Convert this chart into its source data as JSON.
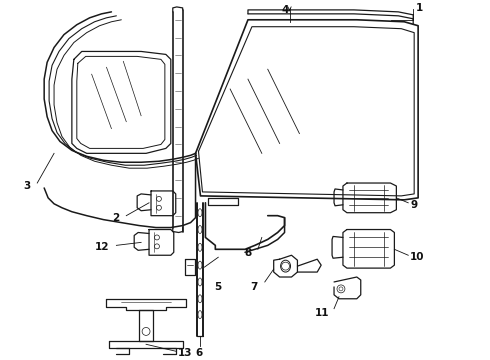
{
  "background_color": "#ffffff",
  "line_color": "#1a1a1a",
  "line_width": 0.9,
  "label_fontsize": 7.5,
  "figsize": [
    4.9,
    3.6
  ],
  "dpi": 100
}
